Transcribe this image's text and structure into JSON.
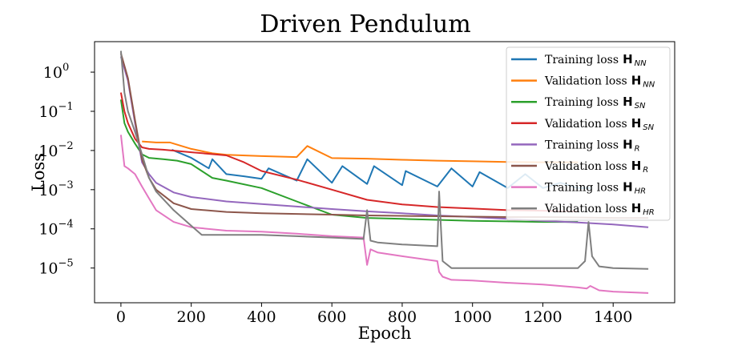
{
  "chart_data": {
    "type": "line",
    "title": "Driven Pendulum",
    "xlabel": "Epoch",
    "ylabel": "Loss",
    "xlim": [
      -75,
      1575
    ],
    "ylim": [
      1.3e-06,
      6.0
    ],
    "yscale": "log",
    "x_ticks": [
      "0",
      "200",
      "400",
      "600",
      "800",
      "1000",
      "1200",
      "1400"
    ],
    "y_ticks": [
      {
        "base": "10",
        "exp": "0"
      },
      {
        "base": "10",
        "exp": "−1"
      },
      {
        "base": "10",
        "exp": "−2"
      },
      {
        "base": "10",
        "exp": "−3"
      },
      {
        "base": "10",
        "exp": "−4"
      },
      {
        "base": "10",
        "exp": "−5"
      }
    ],
    "grid": false,
    "legend_position": "top-right",
    "series": [
      {
        "legend_text": "Training loss",
        "symbol": "H",
        "subscript": "NN",
        "color": "#1f77b4",
        "x": [
          145,
          200,
          250,
          260,
          300,
          350,
          400,
          420,
          500,
          530,
          600,
          630,
          700,
          720,
          800,
          810,
          900,
          940,
          1000,
          1020,
          1100,
          1150,
          1200,
          1250,
          1300,
          1340
        ],
        "y": [
          0.0105,
          0.0065,
          0.0035,
          0.006,
          0.0025,
          0.0022,
          0.0019,
          0.0035,
          0.0017,
          0.006,
          0.0015,
          0.004,
          0.0014,
          0.004,
          0.0013,
          0.003,
          0.0012,
          0.0035,
          0.0012,
          0.0028,
          0.0011,
          0.0025,
          0.0011,
          0.0015,
          0.0011,
          0.0011
        ]
      },
      {
        "legend_text": "Validation loss",
        "symbol": "H",
        "subscript": "NN",
        "color": "#ff7f0e",
        "x": [
          60,
          100,
          140,
          200,
          260,
          300,
          400,
          500,
          530,
          600,
          700,
          800,
          900,
          1000,
          1100,
          1200,
          1300
        ],
        "y": [
          0.017,
          0.016,
          0.016,
          0.011,
          0.0085,
          0.0078,
          0.0072,
          0.0068,
          0.013,
          0.0064,
          0.0062,
          0.0058,
          0.0055,
          0.0053,
          0.0051,
          0.005,
          0.005
        ]
      },
      {
        "legend_text": "Training loss",
        "symbol": "H",
        "subscript": "SN",
        "color": "#2ca02c",
        "x": [
          0,
          10,
          20,
          40,
          60,
          80,
          120,
          160,
          200,
          230,
          260,
          300,
          400,
          500,
          600,
          700,
          800,
          900,
          1000,
          1100,
          1200,
          1300
        ],
        "y": [
          0.2,
          0.05,
          0.03,
          0.015,
          0.008,
          0.0065,
          0.006,
          0.0055,
          0.0045,
          0.003,
          0.002,
          0.0017,
          0.0011,
          0.0005,
          0.00023,
          0.00019,
          0.00018,
          0.00017,
          0.00016,
          0.000155,
          0.00015,
          0.00015
        ]
      },
      {
        "legend_text": "Validation loss",
        "symbol": "H",
        "subscript": "SN",
        "color": "#d62728",
        "x": [
          0,
          10,
          20,
          40,
          60,
          80,
          120,
          200,
          300,
          350,
          400,
          500,
          600,
          700,
          800,
          900,
          1000,
          1100,
          1200,
          1300
        ],
        "y": [
          0.3,
          0.1,
          0.05,
          0.02,
          0.012,
          0.011,
          0.0105,
          0.009,
          0.0075,
          0.005,
          0.003,
          0.0018,
          0.001,
          0.00055,
          0.00042,
          0.00036,
          0.00033,
          0.0003,
          0.00029,
          0.00028
        ]
      },
      {
        "legend_text": "Training loss",
        "symbol": "H",
        "subscript": "R",
        "color": "#9467bd",
        "x": [
          0,
          20,
          40,
          60,
          80,
          100,
          150,
          200,
          300,
          400,
          500,
          600,
          700,
          800,
          900,
          1000,
          1100,
          1200,
          1300,
          1400,
          1500
        ],
        "y": [
          2.5,
          0.6,
          0.05,
          0.005,
          0.0025,
          0.0015,
          0.00085,
          0.00065,
          0.0005,
          0.00043,
          0.00037,
          0.00032,
          0.00028,
          0.00025,
          0.00022,
          0.0002,
          0.00018,
          0.00016,
          0.000145,
          0.00013,
          0.00011
        ]
      },
      {
        "legend_text": "Validation loss",
        "symbol": "H",
        "subscript": "R",
        "color": "#8c564b",
        "x": [
          0,
          20,
          40,
          60,
          80,
          100,
          150,
          200,
          300,
          400,
          500,
          600,
          700,
          800,
          900,
          1000,
          1100,
          1200,
          1300,
          1400,
          1500
        ],
        "y": [
          3.0,
          0.7,
          0.06,
          0.006,
          0.002,
          0.001,
          0.00045,
          0.00032,
          0.00027,
          0.00025,
          0.00024,
          0.00023,
          0.00022,
          0.000215,
          0.00021,
          0.000205,
          0.0002,
          0.0002,
          0.000195,
          0.00019,
          0.00019
        ]
      },
      {
        "legend_text": "Training loss",
        "symbol": "H",
        "subscript": "HR",
        "color": "#e377c2",
        "x": [
          0,
          10,
          20,
          40,
          60,
          80,
          100,
          150,
          200,
          300,
          400,
          500,
          600,
          690,
          700,
          710,
          730,
          800,
          900,
          905,
          915,
          940,
          1000,
          1100,
          1200,
          1300,
          1325,
          1335,
          1360,
          1400,
          1500
        ],
        "y": [
          0.025,
          0.004,
          0.0035,
          0.0025,
          0.0012,
          0.0006,
          0.0003,
          0.00015,
          0.00011,
          9e-05,
          8.5e-05,
          7.5e-05,
          6.5e-05,
          6e-05,
          1.2e-05,
          3e-05,
          2.5e-05,
          2e-05,
          1.5e-05,
          8e-06,
          6e-06,
          5e-06,
          4.8e-06,
          4.2e-06,
          3.8e-06,
          3.2e-06,
          3e-06,
          3.5e-06,
          2.7e-06,
          2.5e-06,
          2.3e-06
        ]
      },
      {
        "legend_text": "Validation loss",
        "symbol": "H",
        "subscript": "HR",
        "color": "#7f7f7f",
        "x": [
          0,
          10,
          20,
          40,
          60,
          80,
          100,
          150,
          200,
          230,
          300,
          400,
          500,
          600,
          690,
          700,
          710,
          730,
          800,
          900,
          905,
          915,
          940,
          1000,
          1100,
          1200,
          1300,
          1320,
          1330,
          1340,
          1360,
          1400,
          1500
        ],
        "y": [
          3.5,
          0.3,
          0.1,
          0.03,
          0.008,
          0.002,
          0.0009,
          0.0003,
          0.00012,
          7e-05,
          7e-05,
          7e-05,
          6.5e-05,
          6e-05,
          5.5e-05,
          0.0003,
          5e-05,
          4.5e-05,
          4e-05,
          3.6e-05,
          0.0009,
          1.5e-05,
          1e-05,
          1e-05,
          1e-05,
          1e-05,
          1e-05,
          1.5e-05,
          0.00015,
          2e-05,
          1.1e-05,
          1e-05,
          9.5e-06
        ]
      }
    ]
  }
}
